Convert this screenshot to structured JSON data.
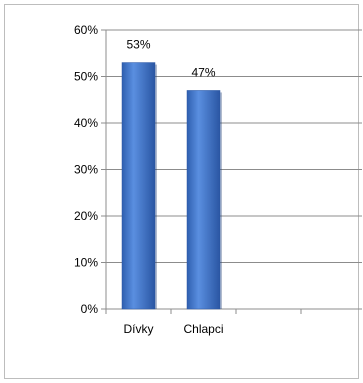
{
  "chart_data": {
    "type": "bar",
    "categories": [
      "Dívky",
      "Chlapci"
    ],
    "values": [
      53,
      47
    ],
    "data_labels": [
      "53%",
      "47%"
    ],
    "y_ticks": [
      "0%",
      "10%",
      "20%",
      "30%",
      "40%",
      "50%",
      "60%"
    ],
    "ylim": [
      0,
      60
    ],
    "grid": true,
    "slots": 5,
    "bar_color": "#3a6fc4"
  }
}
